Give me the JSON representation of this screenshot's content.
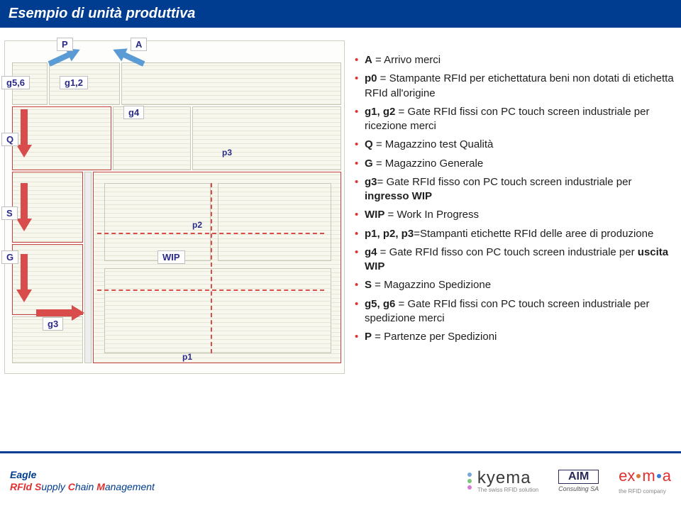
{
  "title": "Esempio di unità produttiva",
  "bullets": [
    {
      "key": "A",
      "text": " = Arrivo merci"
    },
    {
      "key": "p0",
      "text": " = Stampante RFId per etichettatura beni non dotati di etichetta RFId all'origine"
    },
    {
      "key": "g1, g2",
      "text": " = Gate RFId fissi con PC touch screen industriale per ricezione merci"
    },
    {
      "key": "Q",
      "text": " = Magazzino test Qualità"
    },
    {
      "key": "G",
      "text": " = Magazzino Generale"
    },
    {
      "key": "g3",
      "text": "= Gate RFId fisso con PC touch screen industriale per ",
      "tail": "ingresso WIP",
      "tailBold": true
    },
    {
      "key": "WIP",
      "text": " = Work In Progress"
    },
    {
      "key": "p1, p2, p3",
      "text": "=Stampanti etichette RFId delle aree di produzione"
    },
    {
      "key": "g4",
      "text": " = Gate RFId fisso con PC touch screen industriale per ",
      "tail": "uscita WIP",
      "tailBold": true
    },
    {
      "key": "S",
      "text": " = Magazzino Spedizione"
    },
    {
      "key": "g5, g6",
      "text": " = Gate RFId fissi con PC touch screen industriale per spedizione merci"
    },
    {
      "key": "P",
      "text": " = Partenze per Spedizioni"
    }
  ],
  "labels": {
    "P": "P",
    "A": "A",
    "g56": "g5,6",
    "g12": "g1,2",
    "g4": "g4",
    "Q": "Q",
    "S": "S",
    "G": "G",
    "g3": "g3",
    "WIP": "WIP",
    "p1": "p1",
    "p2": "p2",
    "p3": "p3"
  },
  "footer": {
    "line1": "Eagle",
    "line2_pre": "RFId ",
    "line2_s": "S",
    "line2_mid": "upply ",
    "line2_c": "C",
    "line2_mid2": "hain ",
    "line2_m": "M",
    "line2_end": "anagement",
    "kyema": "kyema",
    "kyema_sub": "The swiss RFID solution",
    "aim": "AIM",
    "aim_sub": "Consulting SA",
    "eximia": "ex  m  a",
    "eximia_sub": "the RFID company"
  },
  "colors": {
    "titlebar": "#003c8f",
    "bullet_marker": "#e03030",
    "label_text": "#2a2a8a",
    "arrow_blue": "#5b9bd5",
    "arrow_red": "#d94c4c"
  }
}
